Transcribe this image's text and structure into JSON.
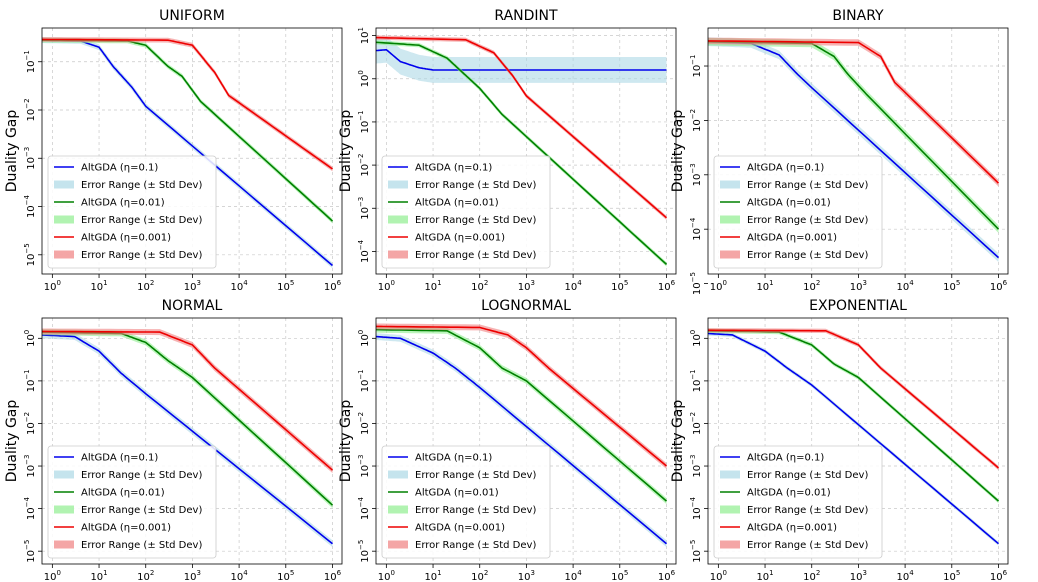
{
  "colors": {
    "blue": "#0000ee",
    "green": "#008000",
    "red": "#ee0000",
    "blue_band": "#add8e6",
    "green_band": "#90ee90",
    "red_band": "#f08080",
    "grid": "#c8c8c8"
  },
  "shared": {
    "ylabel": "Duality Gap",
    "x_ticks": [
      {
        "value": 1,
        "base": "10",
        "exp": "0"
      },
      {
        "value": 10,
        "base": "10",
        "exp": "1"
      },
      {
        "value": 100,
        "base": "10",
        "exp": "2"
      },
      {
        "value": 1000,
        "base": "10",
        "exp": "3"
      },
      {
        "value": 10000,
        "base": "10",
        "exp": "4"
      },
      {
        "value": 100000,
        "base": "10",
        "exp": "5"
      },
      {
        "value": 1000000,
        "base": "10",
        "exp": "6"
      }
    ],
    "legend": [
      {
        "label": "AltGDA (η=0.1)",
        "kind": "line",
        "color": "blue"
      },
      {
        "label": "Error Range (± Std Dev)",
        "kind": "band",
        "color": "blue_band"
      },
      {
        "label": "AltGDA (η=0.01)",
        "kind": "line",
        "color": "green"
      },
      {
        "label": "Error Range (± Std Dev)",
        "kind": "band",
        "color": "green_band"
      },
      {
        "label": "AltGDA (η=0.001)",
        "kind": "line",
        "color": "red"
      },
      {
        "label": "Error Range (± Std Dev)",
        "kind": "band",
        "color": "red_band"
      }
    ]
  },
  "chart_data": [
    {
      "type": "line",
      "title": "UNIFORM",
      "xscale": "log",
      "yscale": "log",
      "xlim": [
        0.6,
        1600000
      ],
      "ylim": [
        4e-06,
        0.5
      ],
      "y_ticks": [
        {
          "value": 0.1,
          "exp": "−1"
        },
        {
          "value": 0.01,
          "exp": "−2"
        },
        {
          "value": 0.001,
          "exp": "−3"
        },
        {
          "value": 0.0001,
          "exp": "−4"
        },
        {
          "value": 1e-05,
          "exp": "−5"
        }
      ],
      "ylabel_shown": true,
      "legend": "lower left",
      "grid": true,
      "series": [
        {
          "name": "AltGDA (η=0.1)",
          "color": "blue",
          "band": "blue_band",
          "points": [
            [
              0.6,
              0.28
            ],
            [
              4,
              0.27
            ],
            [
              10,
              0.2
            ],
            [
              20,
              0.08
            ],
            [
              50,
              0.03
            ],
            [
              100,
              0.012
            ],
            [
              1000000,
              6e-06
            ]
          ],
          "band_width": 0.06
        },
        {
          "name": "AltGDA (η=0.01)",
          "color": "green",
          "band": "green_band",
          "points": [
            [
              0.6,
              0.28
            ],
            [
              40,
              0.27
            ],
            [
              100,
              0.22
            ],
            [
              300,
              0.08
            ],
            [
              600,
              0.05
            ],
            [
              1500,
              0.015
            ],
            [
              1000000,
              5e-05
            ]
          ],
          "band_width": 0.05
        },
        {
          "name": "AltGDA (η=0.001)",
          "color": "red",
          "band": "red_band",
          "points": [
            [
              0.6,
              0.29
            ],
            [
              300,
              0.28
            ],
            [
              1000,
              0.22
            ],
            [
              3000,
              0.06
            ],
            [
              6000,
              0.02
            ],
            [
              1000000,
              0.0006
            ]
          ],
          "band_width": 0.05
        }
      ]
    },
    {
      "type": "line",
      "title": "RANDINT",
      "xscale": "log",
      "yscale": "log",
      "xlim": [
        0.6,
        1600000
      ],
      "ylim": [
        3e-05,
        15
      ],
      "y_ticks": [
        {
          "value": 10,
          "exp": "1"
        },
        {
          "value": 1,
          "exp": "0"
        },
        {
          "value": 0.1,
          "exp": "−1"
        },
        {
          "value": 0.01,
          "exp": "−2"
        },
        {
          "value": 0.001,
          "exp": "−3"
        },
        {
          "value": 0.0001,
          "exp": "−4"
        }
      ],
      "ylabel_shown": true,
      "legend": "lower left",
      "grid": true,
      "series": [
        {
          "name": "AltGDA (η=0.1)",
          "color": "blue",
          "band": "blue_band",
          "points": [
            [
              0.6,
              4.5
            ],
            [
              1,
              4.7
            ],
            [
              2,
              2.5
            ],
            [
              5,
              1.8
            ],
            [
              10,
              1.6
            ],
            [
              1000000,
              1.6
            ]
          ],
          "band_width": 0.3
        },
        {
          "name": "AltGDA (η=0.01)",
          "color": "green",
          "band": "green_band",
          "points": [
            [
              0.6,
              7
            ],
            [
              5,
              6
            ],
            [
              20,
              3
            ],
            [
              50,
              1.2
            ],
            [
              100,
              0.6
            ],
            [
              300,
              0.15
            ],
            [
              1000000,
              5e-05
            ]
          ],
          "band_width": 0.05
        },
        {
          "name": "AltGDA (η=0.001)",
          "color": "red",
          "band": "red_band",
          "points": [
            [
              0.6,
              9
            ],
            [
              50,
              8
            ],
            [
              200,
              4
            ],
            [
              500,
              1.2
            ],
            [
              1000,
              0.4
            ],
            [
              1000000,
              0.0006
            ]
          ],
          "band_width": 0.05
        }
      ]
    },
    {
      "type": "line",
      "title": "BINARY",
      "xscale": "log",
      "yscale": "log",
      "xlim": [
        0.6,
        1600000
      ],
      "ylim": [
        1.5e-05,
        0.5
      ],
      "y_ticks": [
        {
          "value": 0.1,
          "exp": "−1"
        },
        {
          "value": 0.01,
          "exp": "−2"
        },
        {
          "value": 0.001,
          "exp": "−3"
        },
        {
          "value": 0.0001,
          "exp": "−4"
        },
        {
          "value": 1e-05,
          "exp": "−5"
        }
      ],
      "ylabel_shown": true,
      "legend": "lower left",
      "grid": true,
      "series": [
        {
          "name": "AltGDA (η=0.1)",
          "color": "blue",
          "band": "blue_band",
          "points": [
            [
              0.6,
              0.28
            ],
            [
              5,
              0.26
            ],
            [
              20,
              0.16
            ],
            [
              50,
              0.07
            ],
            [
              100,
              0.04
            ],
            [
              1000000,
              3e-05
            ]
          ],
          "band_width": 0.08
        },
        {
          "name": "AltGDA (η=0.01)",
          "color": "green",
          "band": "green_band",
          "points": [
            [
              0.6,
              0.28
            ],
            [
              100,
              0.26
            ],
            [
              300,
              0.15
            ],
            [
              600,
              0.07
            ],
            [
              1500,
              0.03
            ],
            [
              1000000,
              0.0001
            ]
          ],
          "band_width": 0.07
        },
        {
          "name": "AltGDA (η=0.001)",
          "color": "red",
          "band": "red_band",
          "points": [
            [
              0.6,
              0.29
            ],
            [
              1000,
              0.27
            ],
            [
              3000,
              0.15
            ],
            [
              6000,
              0.05
            ],
            [
              1000000,
              0.0007
            ]
          ],
          "band_width": 0.06
        }
      ]
    },
    {
      "type": "line",
      "title": "NORMAL",
      "xscale": "log",
      "yscale": "log",
      "xlim": [
        0.6,
        1600000
      ],
      "ylim": [
        5e-06,
        3
      ],
      "y_ticks": [
        {
          "value": 1,
          "exp": "0"
        },
        {
          "value": 0.1,
          "exp": "−1"
        },
        {
          "value": 0.01,
          "exp": "−2"
        },
        {
          "value": 0.001,
          "exp": "−3"
        },
        {
          "value": 0.0001,
          "exp": "−4"
        },
        {
          "value": 1e-05,
          "exp": "−5"
        }
      ],
      "ylabel_shown": true,
      "legend": "lower left",
      "grid": true,
      "series": [
        {
          "name": "AltGDA (η=0.1)",
          "color": "blue",
          "band": "blue_band",
          "points": [
            [
              0.6,
              1.2
            ],
            [
              3,
              1.1
            ],
            [
              10,
              0.5
            ],
            [
              30,
              0.15
            ],
            [
              100,
              0.05
            ],
            [
              1000000,
              1.5e-05
            ]
          ],
          "band_width": 0.08
        },
        {
          "name": "AltGDA (η=0.01)",
          "color": "green",
          "band": "green_band",
          "points": [
            [
              0.6,
              1.4
            ],
            [
              30,
              1.3
            ],
            [
              100,
              0.8
            ],
            [
              300,
              0.3
            ],
            [
              1000,
              0.12
            ],
            [
              1000000,
              0.00012
            ]
          ],
          "band_width": 0.07
        },
        {
          "name": "AltGDA (η=0.001)",
          "color": "red",
          "band": "red_band",
          "points": [
            [
              0.6,
              1.45
            ],
            [
              200,
              1.4
            ],
            [
              1000,
              0.7
            ],
            [
              3000,
              0.2
            ],
            [
              1000000,
              0.0008
            ]
          ],
          "band_width": 0.07
        }
      ]
    },
    {
      "type": "line",
      "title": "LOGNORMAL",
      "xscale": "log",
      "yscale": "log",
      "xlim": [
        0.6,
        1600000
      ],
      "ylim": [
        5e-06,
        3
      ],
      "y_ticks": [
        {
          "value": 1,
          "exp": "0"
        },
        {
          "value": 0.1,
          "exp": "−1"
        },
        {
          "value": 0.01,
          "exp": "−2"
        },
        {
          "value": 0.001,
          "exp": "−3"
        },
        {
          "value": 0.0001,
          "exp": "−4"
        },
        {
          "value": 1e-05,
          "exp": "−5"
        }
      ],
      "ylabel_shown": true,
      "legend": "lower left",
      "grid": true,
      "series": [
        {
          "name": "AltGDA (η=0.1)",
          "color": "blue",
          "band": "blue_band",
          "points": [
            [
              0.6,
              1.1
            ],
            [
              2,
              1.0
            ],
            [
              10,
              0.45
            ],
            [
              30,
              0.2
            ],
            [
              100,
              0.07
            ],
            [
              1000000,
              1.5e-05
            ]
          ],
          "band_width": 0.08
        },
        {
          "name": "AltGDA (η=0.01)",
          "color": "green",
          "band": "green_band",
          "points": [
            [
              0.6,
              1.6
            ],
            [
              20,
              1.5
            ],
            [
              100,
              0.6
            ],
            [
              300,
              0.2
            ],
            [
              1000,
              0.1
            ],
            [
              1000000,
              0.00015
            ]
          ],
          "band_width": 0.07
        },
        {
          "name": "AltGDA (η=0.001)",
          "color": "red",
          "band": "red_band",
          "points": [
            [
              0.6,
              1.9
            ],
            [
              100,
              1.8
            ],
            [
              400,
              1.2
            ],
            [
              1000,
              0.6
            ],
            [
              3000,
              0.2
            ],
            [
              1000000,
              0.001
            ]
          ],
          "band_width": 0.07
        }
      ]
    },
    {
      "type": "line",
      "title": "EXPONENTIAL",
      "xscale": "log",
      "yscale": "log",
      "xlim": [
        0.6,
        1600000
      ],
      "ylim": [
        5e-06,
        3
      ],
      "y_ticks": [
        {
          "value": 1,
          "exp": "0"
        },
        {
          "value": 0.1,
          "exp": "−1"
        },
        {
          "value": 0.01,
          "exp": "−2"
        },
        {
          "value": 0.001,
          "exp": "−3"
        },
        {
          "value": 0.0001,
          "exp": "−4"
        },
        {
          "value": 1e-05,
          "exp": "−5"
        }
      ],
      "ylabel_shown": true,
      "legend": "lower left",
      "grid": true,
      "series": [
        {
          "name": "AltGDA (η=0.1)",
          "color": "blue",
          "band": "blue_band",
          "points": [
            [
              0.6,
              1.3
            ],
            [
              2,
              1.2
            ],
            [
              10,
              0.5
            ],
            [
              30,
              0.2
            ],
            [
              100,
              0.08
            ],
            [
              1000000,
              1.5e-05
            ]
          ],
          "band_width": 0.05
        },
        {
          "name": "AltGDA (η=0.01)",
          "color": "green",
          "band": "green_band",
          "points": [
            [
              0.6,
              1.5
            ],
            [
              20,
              1.4
            ],
            [
              100,
              0.7
            ],
            [
              300,
              0.25
            ],
            [
              1000,
              0.12
            ],
            [
              1000000,
              0.00015
            ]
          ],
          "band_width": 0.05
        },
        {
          "name": "AltGDA (η=0.001)",
          "color": "red",
          "band": "red_band",
          "points": [
            [
              0.6,
              1.55
            ],
            [
              200,
              1.5
            ],
            [
              1000,
              0.7
            ],
            [
              3000,
              0.2
            ],
            [
              1000000,
              0.0009
            ]
          ],
          "band_width": 0.05
        }
      ]
    }
  ]
}
